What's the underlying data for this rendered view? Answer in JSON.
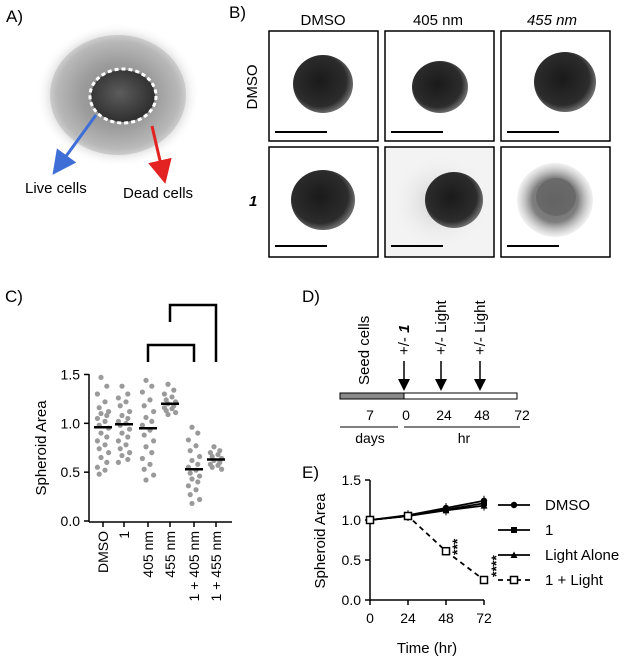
{
  "panel_labels": [
    "A)",
    "B)",
    "C)",
    "D)",
    "E)"
  ],
  "panel_a": {
    "annotations": {
      "live_cells": "Live cells",
      "dead_cells": "Dead cells"
    },
    "colors": {
      "live_arrow": "#3f6fd6",
      "dead_arrow": "#e32222"
    }
  },
  "panel_b": {
    "col_headers": [
      "DMSO",
      "405 nm",
      "455 nm"
    ],
    "row_headers": [
      "DMSO",
      "1"
    ]
  },
  "chart_data": [
    {
      "type": "scatter",
      "panel": "C",
      "ylabel": "Spheroid Area",
      "ylim": [
        0.0,
        1.5
      ],
      "yticks": [
        "0.0",
        "0.5",
        "1.0",
        "1.5"
      ],
      "categories": [
        "DMSO",
        "1",
        "405 nm",
        "455 nm",
        "1 + 405 nm",
        "1 + 455 nm"
      ],
      "means": [
        0.96,
        0.99,
        0.95,
        1.2,
        0.53,
        0.63
      ],
      "point_color": "#9a9a9a",
      "points": [
        [
          1.47,
          1.38,
          1.3,
          1.22,
          1.16,
          1.12,
          1.1,
          1.08,
          1.05,
          1.02,
          0.98,
          0.95,
          0.9,
          0.86,
          0.82,
          0.78,
          0.74,
          0.7,
          0.65,
          0.6,
          0.55,
          0.52,
          0.48
        ],
        [
          1.38,
          1.3,
          1.26,
          1.22,
          1.18,
          1.12,
          1.08,
          1.05,
          1.02,
          1.0,
          0.98,
          0.94,
          0.9,
          0.86,
          0.82,
          0.78,
          0.74,
          0.7,
          0.67,
          0.63,
          0.6
        ],
        [
          1.44,
          1.38,
          1.32,
          1.24,
          1.18,
          1.12,
          1.06,
          1.02,
          0.98,
          0.93,
          0.88,
          0.82,
          0.76,
          0.7,
          0.64,
          0.58,
          0.53,
          0.47,
          0.42
        ],
        [
          1.4,
          1.34,
          1.3,
          1.27,
          1.24,
          1.22,
          1.2,
          1.18,
          1.16,
          1.15,
          1.13,
          1.11,
          1.09
        ],
        [
          0.96,
          0.9,
          0.83,
          0.77,
          0.72,
          0.66,
          0.62,
          0.58,
          0.55,
          0.52,
          0.49,
          0.46,
          0.43,
          0.4,
          0.36,
          0.32,
          0.27,
          0.22,
          0.18
        ],
        [
          0.76,
          0.72,
          0.7,
          0.68,
          0.66,
          0.64,
          0.62,
          0.6,
          0.58,
          0.57,
          0.55,
          0.53
        ]
      ],
      "brackets": [
        [
          "405 nm",
          "455 nm"
        ],
        [
          "455 nm",
          "1 + 455 nm"
        ]
      ]
    },
    {
      "type": "timeline",
      "panel": "D",
      "ticks": [
        "7",
        "0",
        "24",
        "48",
        "72"
      ],
      "units": [
        "days",
        "hr"
      ],
      "events": [
        {
          "label": "Seed cells",
          "at": "7"
        },
        {
          "label": "+/- ",
          "emph": "1",
          "at": "0"
        },
        {
          "label": "+/- Light",
          "at": "24"
        },
        {
          "label": "+/- Light",
          "at": "48"
        }
      ]
    },
    {
      "type": "line",
      "panel": "E",
      "xlabel": "Time (hr)",
      "ylabel": "Spheroid Area",
      "x": [
        0,
        24,
        48,
        72
      ],
      "xlim": [
        0,
        72
      ],
      "ylim": [
        0.0,
        1.5
      ],
      "xticks": [
        "0",
        "24",
        "48",
        "72"
      ],
      "yticks": [
        "0.0",
        "0.5",
        "1.0",
        "1.5"
      ],
      "series": [
        {
          "name": "DMSO",
          "values": [
            1.0,
            1.06,
            1.15,
            1.24
          ],
          "marker": "circle",
          "dash": false
        },
        {
          "name": "1",
          "values": [
            1.0,
            1.05,
            1.13,
            1.21
          ],
          "marker": "square",
          "dash": false
        },
        {
          "name": "Light Alone",
          "values": [
            1.0,
            1.05,
            1.12,
            1.18
          ],
          "marker": "triangle",
          "dash": false
        },
        {
          "name": "1 + Light",
          "values": [
            1.0,
            1.05,
            0.61,
            0.25
          ],
          "marker": "open-square",
          "dash": true
        }
      ],
      "annotations": [
        "***",
        "****"
      ]
    }
  ]
}
